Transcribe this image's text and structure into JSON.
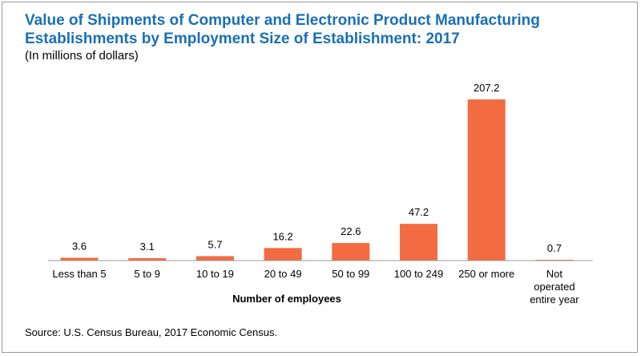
{
  "chart_data": {
    "type": "bar",
    "title": "Value of Shipments of Computer and Electronic Product Manufacturing Establishments by Employment Size of Establishment: 2017",
    "subtitle": "(In millions of dollars)",
    "xlabel": "Number of employees",
    "ylabel": "",
    "categories": [
      "Less than 5",
      "5 to 9",
      "10 to 19",
      "20 to 49",
      "50 to 99",
      "100 to 249",
      "250 or more",
      "Not operated entire year"
    ],
    "category_lines": [
      [
        "Less than 5"
      ],
      [
        "5 to 9"
      ],
      [
        "10 to 19"
      ],
      [
        "20 to 49"
      ],
      [
        "50 to 99"
      ],
      [
        "100 to 249"
      ],
      [
        "250 or more"
      ],
      [
        "Not",
        "operated",
        "entire year"
      ]
    ],
    "values": [
      3.6,
      3.1,
      5.7,
      16.2,
      22.6,
      47.2,
      207.2,
      0.7
    ],
    "value_labels": [
      "3.6",
      "3.1",
      "5.7",
      "16.2",
      "22.6",
      "47.2",
      "207.2",
      "0.7"
    ],
    "ylim": [
      0,
      207.2
    ],
    "grid": false,
    "legend": "none",
    "bar_color": "#f26b43",
    "axis_color": "#9a9a9a",
    "title_color": "#1a6fb5"
  },
  "source": "Source: U.S. Census Bureau, 2017 Economic Census."
}
